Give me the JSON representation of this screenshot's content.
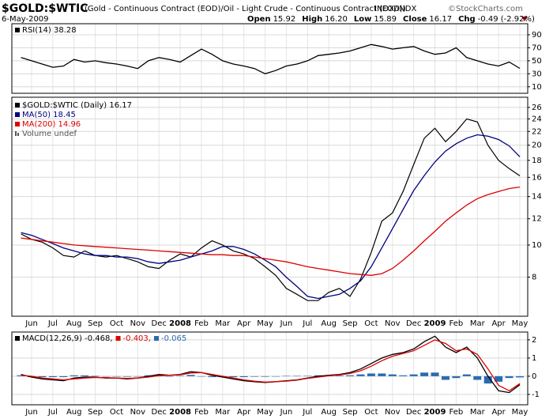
{
  "header": {
    "symbol": "$GOLD:$WTIC",
    "description": "(Gold - Continuous Contract (EOD)/Oil - Light Crude - Continuous Contract (EOD))",
    "exchange": "INDX/INDX",
    "source": "©StockCharts.com",
    "date": "6-May-2009",
    "quote": [
      {
        "label": "Open",
        "value": "15.92"
      },
      {
        "label": "High",
        "value": "16.20"
      },
      {
        "label": "Low",
        "value": "15.89"
      },
      {
        "label": "Close",
        "value": "16.17"
      },
      {
        "label": "Chg",
        "value": "-0.49 (-2.92%)"
      }
    ]
  },
  "chart_data": [
    {
      "type": "line",
      "ylim": [
        0,
        107
      ],
      "yticks": [
        10,
        30,
        50,
        70,
        90
      ],
      "series": [
        {
          "name": "RSI(14) 38.28",
          "color": "#000000",
          "values": [
            55,
            50,
            45,
            40,
            42,
            52,
            48,
            50,
            47,
            45,
            42,
            38,
            50,
            55,
            52,
            48,
            58,
            68,
            60,
            50,
            45,
            42,
            38,
            30,
            35,
            42,
            45,
            50,
            58,
            60,
            62,
            65,
            70,
            75,
            72,
            68,
            70,
            72,
            65,
            60,
            62,
            70,
            55,
            50,
            45,
            42,
            48,
            38.28
          ]
        }
      ]
    },
    {
      "type": "line",
      "log_scale": true,
      "categories": [
        null,
        "Jun",
        null,
        "Jul",
        null,
        "Aug",
        null,
        "Sep",
        null,
        "Oct",
        null,
        "Nov",
        null,
        "Dec",
        null,
        "2008",
        null,
        "Feb",
        null,
        "Mar",
        null,
        "Apr",
        null,
        "May",
        null,
        "Jun",
        null,
        "Jul",
        null,
        "Aug",
        null,
        "Sep",
        null,
        "Oct",
        null,
        "Nov",
        null,
        "Dec",
        null,
        "2009",
        null,
        "Feb",
        null,
        "Mar",
        null,
        "Apr",
        null,
        "May"
      ],
      "ylim": [
        6.1,
        27.9
      ],
      "yticks": [
        8,
        10,
        12,
        14,
        16,
        18,
        20,
        22,
        24,
        26
      ],
      "series": [
        {
          "name": "$GOLD:$WTIC (Daily) 16.17",
          "color": "#000000",
          "values": [
            10.8,
            10.4,
            10.2,
            9.8,
            9.3,
            9.2,
            9.6,
            9.3,
            9.2,
            9.3,
            9.1,
            8.9,
            8.6,
            8.5,
            9.0,
            9.4,
            9.2,
            9.8,
            10.3,
            10.0,
            9.6,
            9.4,
            9.1,
            8.6,
            8.1,
            7.4,
            7.1,
            6.8,
            6.8,
            7.2,
            7.4,
            7.0,
            7.9,
            9.5,
            11.8,
            12.5,
            14.5,
            17.5,
            21.0,
            22.5,
            20.5,
            22.0,
            24.0,
            23.5,
            20.0,
            18.0,
            17.0,
            16.17
          ]
        },
        {
          "name": "MA(50) 18.45",
          "color": "#000080",
          "values": [
            10.9,
            10.7,
            10.4,
            10.1,
            9.8,
            9.6,
            9.4,
            9.3,
            9.3,
            9.2,
            9.2,
            9.1,
            8.9,
            8.8,
            8.9,
            9.0,
            9.2,
            9.4,
            9.6,
            9.9,
            9.9,
            9.7,
            9.4,
            9.0,
            8.6,
            8.0,
            7.5,
            7.0,
            6.9,
            7.0,
            7.1,
            7.4,
            7.8,
            8.6,
            9.8,
            11.2,
            12.8,
            14.6,
            16.2,
            17.8,
            19.2,
            20.2,
            21.0,
            21.5,
            21.3,
            20.8,
            19.9,
            18.45
          ]
        },
        {
          "name": "MA(200) 14.96",
          "color": "#dd0000",
          "values": [
            10.5,
            10.4,
            10.3,
            10.2,
            10.1,
            10.0,
            9.95,
            9.9,
            9.85,
            9.8,
            9.75,
            9.7,
            9.65,
            9.6,
            9.55,
            9.5,
            9.45,
            9.4,
            9.35,
            9.35,
            9.3,
            9.3,
            9.2,
            9.1,
            9.0,
            8.9,
            8.75,
            8.6,
            8.5,
            8.4,
            8.3,
            8.2,
            8.15,
            8.1,
            8.2,
            8.5,
            9.0,
            9.6,
            10.3,
            11.0,
            11.8,
            12.5,
            13.2,
            13.8,
            14.2,
            14.5,
            14.8,
            14.96
          ]
        }
      ],
      "note": "Volume undef"
    },
    {
      "type": "line",
      "categories": [
        null,
        "Jun",
        null,
        "Jul",
        null,
        "Aug",
        null,
        "Sep",
        null,
        "Oct",
        null,
        "Nov",
        null,
        "Dec",
        null,
        "2008",
        null,
        "Feb",
        null,
        "Mar",
        null,
        "Apr",
        null,
        "May",
        null,
        "Jun",
        null,
        "Jul",
        null,
        "Aug",
        null,
        "Sep",
        null,
        "Oct",
        null,
        "Nov",
        null,
        "Dec",
        null,
        "2009",
        null,
        "Feb",
        null,
        "Mar",
        null,
        "Apr",
        null,
        "May"
      ],
      "ylim": [
        -1.57,
        2.43
      ],
      "yticks": [
        -1,
        0,
        1,
        2
      ],
      "series": [
        {
          "name": "-0.065",
          "type": "bar",
          "color": "#2a6bb0",
          "values": [
            0.05,
            -0.05,
            -0.05,
            -0.05,
            -0.05,
            0.05,
            0.05,
            0.02,
            -0.02,
            0,
            -0.03,
            0,
            0.05,
            0.07,
            0,
            0.02,
            0.07,
            0,
            -0.05,
            -0.05,
            -0.05,
            -0.05,
            -0.03,
            -0.03,
            0,
            0.02,
            0.02,
            0.02,
            0.05,
            0.03,
            0.03,
            0.05,
            0.1,
            0.15,
            0.15,
            0.1,
            0.05,
            0.1,
            0.2,
            0.2,
            -0.2,
            -0.1,
            0.1,
            -0.2,
            -0.4,
            -0.3,
            -0.1,
            -0.065
          ]
        },
        {
          "name": "MACD(12,26,9) -0.468,",
          "color": "#000000",
          "values": [
            0.1,
            -0.05,
            -0.15,
            -0.2,
            -0.25,
            -0.1,
            -0.05,
            -0.05,
            -0.1,
            -0.1,
            -0.15,
            -0.1,
            0,
            0.1,
            0.05,
            0.1,
            0.25,
            0.2,
            0.05,
            -0.05,
            -0.15,
            -0.25,
            -0.3,
            -0.35,
            -0.3,
            -0.25,
            -0.2,
            -0.1,
            0,
            0.05,
            0.1,
            0.2,
            0.4,
            0.7,
            1.0,
            1.2,
            1.3,
            1.5,
            1.9,
            2.2,
            1.6,
            1.3,
            1.6,
            1.0,
            0,
            -0.8,
            -0.9,
            -0.468
          ]
        },
        {
          "name": "-0.403,",
          "color": "#dd0000",
          "values": [
            0.05,
            0,
            -0.1,
            -0.15,
            -0.2,
            -0.15,
            -0.1,
            -0.07,
            -0.08,
            -0.1,
            -0.12,
            -0.1,
            -0.05,
            0.03,
            0.05,
            0.08,
            0.18,
            0.2,
            0.1,
            0,
            -0.1,
            -0.2,
            -0.27,
            -0.32,
            -0.3,
            -0.27,
            -0.22,
            -0.12,
            -0.05,
            0.02,
            0.07,
            0.15,
            0.3,
            0.55,
            0.85,
            1.1,
            1.25,
            1.4,
            1.7,
            2.0,
            1.8,
            1.4,
            1.5,
            1.2,
            0.4,
            -0.5,
            -0.8,
            -0.403
          ]
        }
      ]
    }
  ]
}
